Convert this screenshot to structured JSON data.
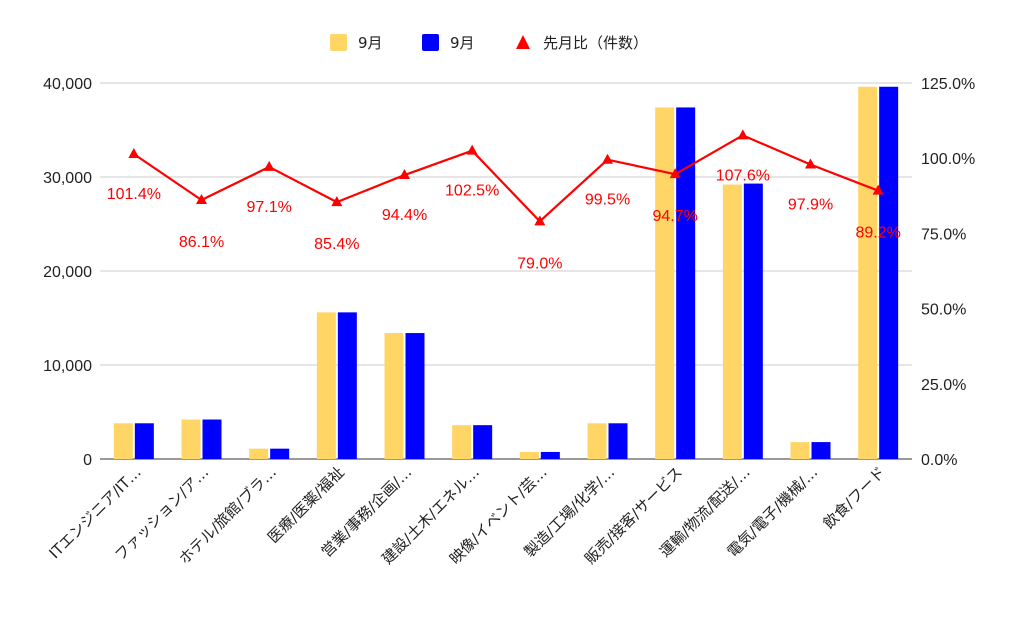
{
  "chart_data": {
    "type": "bar",
    "categories": [
      "ITエンジニア/IT…",
      "ファッション/ア…",
      "ホテル/旅館/ブラ…",
      "医療/医薬/福祉",
      "営業/事務/企画/…",
      "建設/土木/エネル…",
      "映像/イベント/芸…",
      "製造/工場/化学/…",
      "販売/接客/サービス",
      "運輸/物流/配送/…",
      "電気/電子/機械/…",
      "飲食/フード"
    ],
    "series": [
      {
        "name": "9月",
        "type": "bar",
        "axis": "left",
        "color": "#ffd666",
        "values": [
          3800,
          4200,
          1100,
          15600,
          13400,
          3600,
          750,
          3800,
          37400,
          29200,
          1800,
          39600
        ]
      },
      {
        "name": "9月",
        "type": "bar",
        "axis": "left",
        "color": "#0000ff",
        "values": [
          3800,
          4200,
          1100,
          15600,
          13400,
          3600,
          750,
          3800,
          37400,
          29300,
          1800,
          39600
        ]
      },
      {
        "name": "先月比（件数）",
        "type": "line",
        "axis": "right",
        "color": "#ff0000",
        "marker": "triangle",
        "values": [
          101.4,
          86.1,
          97.1,
          85.4,
          94.4,
          102.5,
          79.0,
          99.5,
          94.7,
          107.6,
          97.9,
          89.2
        ],
        "labels": [
          "101.4%",
          "86.1%",
          "97.1%",
          "85.4%",
          "94.4%",
          "102.5%",
          "79.0%",
          "99.5%",
          "94.7%",
          "107.6%",
          "97.9%",
          "89.2%"
        ]
      }
    ],
    "y_left": {
      "min": 0,
      "max": 40000,
      "ticks": [
        0,
        10000,
        20000,
        30000,
        40000
      ],
      "tick_labels": [
        "0",
        "10,000",
        "20,000",
        "30,000",
        "40,000"
      ]
    },
    "y_right": {
      "min": 0,
      "max": 125,
      "ticks": [
        0,
        25,
        50,
        75,
        100,
        125
      ],
      "tick_labels": [
        "0.0%",
        "25.0%",
        "50.0%",
        "75.0%",
        "100.0%",
        "125.0%"
      ]
    },
    "grid": true,
    "legend_position": "top-center"
  }
}
